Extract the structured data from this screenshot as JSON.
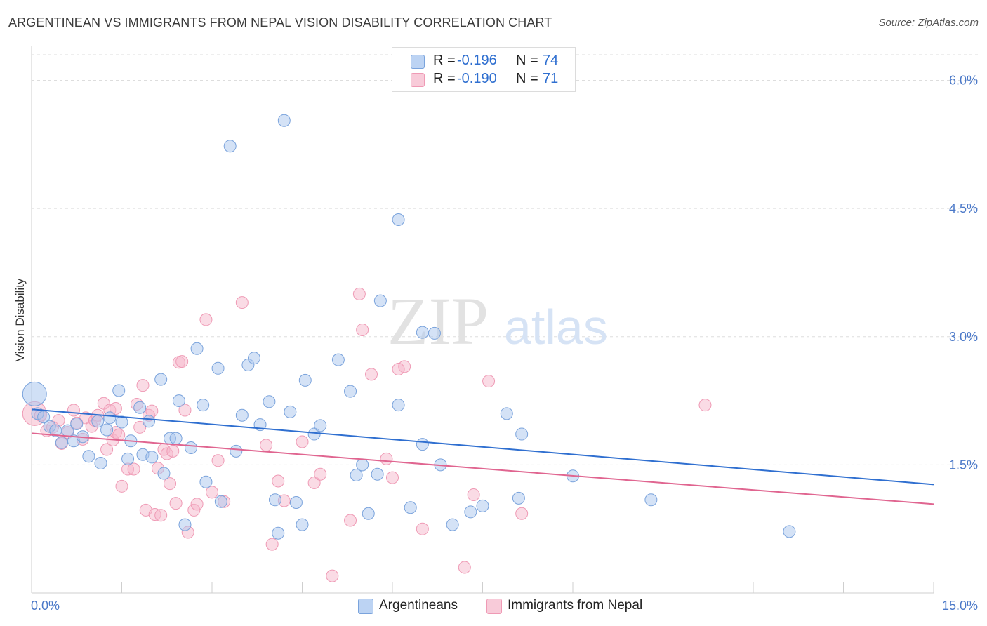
{
  "title": "ARGENTINEAN VS IMMIGRANTS FROM NEPAL VISION DISABILITY CORRELATION CHART",
  "source": "Source: ZipAtlas.com",
  "watermark": {
    "zip": "ZIP",
    "atlas": "atlas"
  },
  "legend": {
    "rows": [
      {
        "r_label": "R =",
        "r_value": "-0.196",
        "n_label": "N =",
        "n_value": "74"
      },
      {
        "r_label": "R =",
        "r_value": "-0.190",
        "n_label": "N =",
        "n_value": "71"
      }
    ]
  },
  "bottom_legend": {
    "series1": "Argentineans",
    "series2": "Immigrants from Nepal"
  },
  "colors": {
    "blue_fill": "#a9c6ee",
    "blue_stroke": "#7aa3dc",
    "blue_line": "#2f6fd0",
    "pink_fill": "#f5b8cb",
    "pink_stroke": "#ef9ab5",
    "pink_line": "#e06590",
    "grid": "#dddddd",
    "tick_text": "#4a78c8"
  },
  "chart_data": {
    "type": "scatter",
    "title": "ARGENTINEAN VS IMMIGRANTS FROM NEPAL VISION DISABILITY CORRELATION CHART",
    "xlabel": "",
    "ylabel": "Vision Disability",
    "xlim": [
      0,
      15
    ],
    "ylim": [
      0,
      6.3
    ],
    "x_tick_labels": [
      "0.0%",
      "15.0%"
    ],
    "y_ticks": [
      1.5,
      3.0,
      4.5,
      6.0
    ],
    "y_tick_labels": [
      "1.5%",
      "3.0%",
      "4.5%",
      "6.0%"
    ],
    "series": [
      {
        "name": "Argentineans",
        "color": "blue",
        "trend": {
          "x": [
            0,
            15
          ],
          "y": [
            2.15,
            1.27
          ]
        },
        "points": [
          {
            "x": 0.05,
            "y": 2.33,
            "big": true
          },
          {
            "x": 0.1,
            "y": 2.1
          },
          {
            "x": 0.2,
            "y": 2.06
          },
          {
            "x": 0.3,
            "y": 1.95
          },
          {
            "x": 0.4,
            "y": 1.9
          },
          {
            "x": 0.5,
            "y": 1.76
          },
          {
            "x": 0.6,
            "y": 1.9
          },
          {
            "x": 0.7,
            "y": 1.78
          },
          {
            "x": 0.75,
            "y": 1.98
          },
          {
            "x": 0.85,
            "y": 1.83
          },
          {
            "x": 0.95,
            "y": 1.6
          },
          {
            "x": 1.1,
            "y": 2.01
          },
          {
            "x": 1.15,
            "y": 1.52
          },
          {
            "x": 1.25,
            "y": 1.91
          },
          {
            "x": 1.3,
            "y": 2.05
          },
          {
            "x": 1.45,
            "y": 2.37
          },
          {
            "x": 1.5,
            "y": 2.0
          },
          {
            "x": 1.6,
            "y": 1.57
          },
          {
            "x": 1.65,
            "y": 1.78
          },
          {
            "x": 1.8,
            "y": 2.17
          },
          {
            "x": 1.85,
            "y": 1.62
          },
          {
            "x": 1.95,
            "y": 2.01
          },
          {
            "x": 2.0,
            "y": 1.59
          },
          {
            "x": 2.15,
            "y": 2.5
          },
          {
            "x": 2.2,
            "y": 1.4
          },
          {
            "x": 2.3,
            "y": 1.81
          },
          {
            "x": 2.4,
            "y": 1.81
          },
          {
            "x": 2.45,
            "y": 2.25
          },
          {
            "x": 2.55,
            "y": 0.8
          },
          {
            "x": 2.65,
            "y": 1.7
          },
          {
            "x": 2.75,
            "y": 2.86
          },
          {
            "x": 2.85,
            "y": 2.2
          },
          {
            "x": 2.9,
            "y": 1.3
          },
          {
            "x": 3.1,
            "y": 2.63
          },
          {
            "x": 3.15,
            "y": 1.07
          },
          {
            "x": 3.3,
            "y": 5.23
          },
          {
            "x": 3.4,
            "y": 1.66
          },
          {
            "x": 3.5,
            "y": 2.08
          },
          {
            "x": 3.6,
            "y": 2.67
          },
          {
            "x": 3.7,
            "y": 2.75
          },
          {
            "x": 3.8,
            "y": 1.97
          },
          {
            "x": 3.95,
            "y": 2.24
          },
          {
            "x": 4.05,
            "y": 1.09
          },
          {
            "x": 4.1,
            "y": 0.7
          },
          {
            "x": 4.2,
            "y": 5.53
          },
          {
            "x": 4.3,
            "y": 2.12
          },
          {
            "x": 4.4,
            "y": 1.06
          },
          {
            "x": 4.5,
            "y": 0.8
          },
          {
            "x": 4.55,
            "y": 2.49
          },
          {
            "x": 4.7,
            "y": 1.86
          },
          {
            "x": 4.8,
            "y": 1.96
          },
          {
            "x": 5.1,
            "y": 2.73
          },
          {
            "x": 5.3,
            "y": 2.36
          },
          {
            "x": 5.4,
            "y": 1.38
          },
          {
            "x": 5.5,
            "y": 1.5
          },
          {
            "x": 5.6,
            "y": 0.93
          },
          {
            "x": 5.75,
            "y": 1.39
          },
          {
            "x": 5.8,
            "y": 3.42
          },
          {
            "x": 6.1,
            "y": 2.2
          },
          {
            "x": 6.3,
            "y": 1.0
          },
          {
            "x": 6.5,
            "y": 1.74
          },
          {
            "x": 6.1,
            "y": 4.37
          },
          {
            "x": 6.5,
            "y": 3.05
          },
          {
            "x": 6.7,
            "y": 3.04
          },
          {
            "x": 6.8,
            "y": 1.5
          },
          {
            "x": 7.0,
            "y": 0.8
          },
          {
            "x": 7.3,
            "y": 0.95
          },
          {
            "x": 7.5,
            "y": 1.02
          },
          {
            "x": 7.9,
            "y": 2.1
          },
          {
            "x": 8.1,
            "y": 1.11
          },
          {
            "x": 8.15,
            "y": 1.86
          },
          {
            "x": 9.0,
            "y": 1.37
          },
          {
            "x": 10.3,
            "y": 1.09
          },
          {
            "x": 12.6,
            "y": 0.72
          }
        ]
      },
      {
        "name": "Immigrants from Nepal",
        "color": "pink",
        "trend": {
          "x": [
            0,
            15
          ],
          "y": [
            1.87,
            1.04
          ]
        },
        "points": [
          {
            "x": 0.05,
            "y": 2.1,
            "big": true
          },
          {
            "x": 0.15,
            "y": 2.08
          },
          {
            "x": 0.25,
            "y": 1.9
          },
          {
            "x": 0.35,
            "y": 1.94
          },
          {
            "x": 0.45,
            "y": 2.02
          },
          {
            "x": 0.5,
            "y": 1.75
          },
          {
            "x": 0.6,
            "y": 1.88
          },
          {
            "x": 0.7,
            "y": 2.14
          },
          {
            "x": 0.75,
            "y": 1.99
          },
          {
            "x": 0.85,
            "y": 1.8
          },
          {
            "x": 0.9,
            "y": 2.05
          },
          {
            "x": 1.0,
            "y": 1.95
          },
          {
            "x": 1.05,
            "y": 2.02
          },
          {
            "x": 1.1,
            "y": 2.08
          },
          {
            "x": 1.2,
            "y": 2.22
          },
          {
            "x": 1.25,
            "y": 1.68
          },
          {
            "x": 1.3,
            "y": 2.14
          },
          {
            "x": 1.35,
            "y": 1.79
          },
          {
            "x": 1.4,
            "y": 1.88
          },
          {
            "x": 1.45,
            "y": 1.85
          },
          {
            "x": 1.5,
            "y": 1.25
          },
          {
            "x": 1.6,
            "y": 1.45
          },
          {
            "x": 1.7,
            "y": 1.45
          },
          {
            "x": 1.75,
            "y": 2.21
          },
          {
            "x": 1.8,
            "y": 1.94
          },
          {
            "x": 1.85,
            "y": 2.43
          },
          {
            "x": 1.9,
            "y": 0.97
          },
          {
            "x": 1.95,
            "y": 2.08
          },
          {
            "x": 2.0,
            "y": 2.13
          },
          {
            "x": 2.05,
            "y": 0.92
          },
          {
            "x": 2.1,
            "y": 1.46
          },
          {
            "x": 2.15,
            "y": 0.91
          },
          {
            "x": 2.2,
            "y": 1.68
          },
          {
            "x": 2.25,
            "y": 1.63
          },
          {
            "x": 2.3,
            "y": 1.28
          },
          {
            "x": 2.35,
            "y": 1.66
          },
          {
            "x": 2.4,
            "y": 1.05
          },
          {
            "x": 2.45,
            "y": 2.7
          },
          {
            "x": 2.5,
            "y": 2.71
          },
          {
            "x": 2.55,
            "y": 2.14
          },
          {
            "x": 2.6,
            "y": 0.71
          },
          {
            "x": 2.7,
            "y": 0.97
          },
          {
            "x": 2.75,
            "y": 1.04
          },
          {
            "x": 2.9,
            "y": 3.2
          },
          {
            "x": 3.0,
            "y": 1.18
          },
          {
            "x": 3.1,
            "y": 1.55
          },
          {
            "x": 3.2,
            "y": 1.07
          },
          {
            "x": 3.5,
            "y": 3.4
          },
          {
            "x": 3.9,
            "y": 1.73
          },
          {
            "x": 4.0,
            "y": 0.57
          },
          {
            "x": 4.1,
            "y": 1.31
          },
          {
            "x": 4.2,
            "y": 1.08
          },
          {
            "x": 4.5,
            "y": 1.77
          },
          {
            "x": 4.7,
            "y": 1.29
          },
          {
            "x": 4.8,
            "y": 1.39
          },
          {
            "x": 5.0,
            "y": 0.2
          },
          {
            "x": 5.3,
            "y": 0.85
          },
          {
            "x": 5.45,
            "y": 3.5
          },
          {
            "x": 5.5,
            "y": 3.08
          },
          {
            "x": 5.65,
            "y": 2.56
          },
          {
            "x": 5.9,
            "y": 1.57
          },
          {
            "x": 6.0,
            "y": 1.35
          },
          {
            "x": 6.2,
            "y": 2.65
          },
          {
            "x": 6.5,
            "y": 0.75
          },
          {
            "x": 7.2,
            "y": 0.3
          },
          {
            "x": 7.35,
            "y": 1.15
          },
          {
            "x": 7.6,
            "y": 2.48
          },
          {
            "x": 8.15,
            "y": 0.93
          },
          {
            "x": 11.2,
            "y": 2.2
          },
          {
            "x": 6.1,
            "y": 2.62
          },
          {
            "x": 1.4,
            "y": 2.16
          }
        ]
      }
    ]
  }
}
